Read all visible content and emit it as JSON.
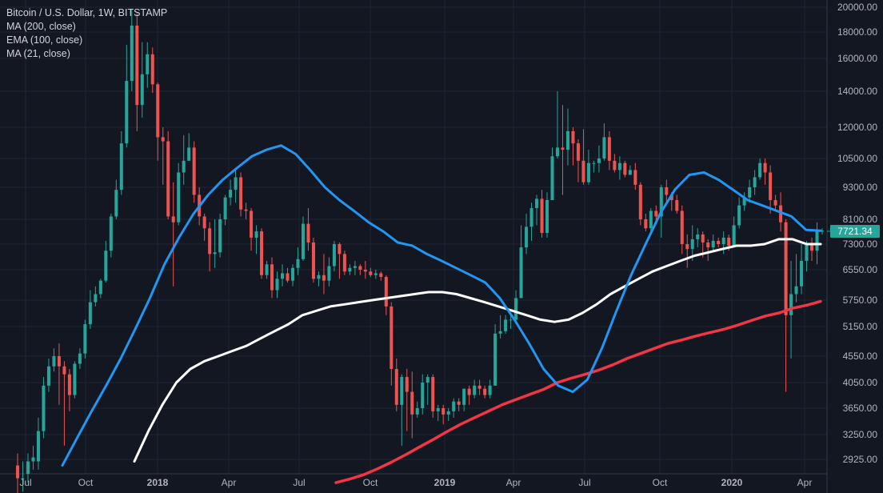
{
  "chart_data": {
    "type": "candlestick",
    "title": "Bitcoin / U.S. Dollar, 1W, BITSTAMP",
    "indicators": [
      {
        "name": "MA (200, close)",
        "color": "#f23645"
      },
      {
        "name": "EMA (100, close)",
        "color": "#ffffff"
      },
      {
        "name": "MA (21, close)",
        "color": "#2196f3"
      }
    ],
    "last_price": "7721.34",
    "y_scale": "log",
    "y_ticks": [
      "20000.00",
      "18000.00",
      "16000.00",
      "14000.00",
      "12000.00",
      "10500.00",
      "9300.00",
      "8100.00",
      "7300.00",
      "6550.00",
      "5750.00",
      "5150.00",
      "4550.00",
      "4050.00",
      "3650.00",
      "3250.00",
      "2925.00"
    ],
    "x_ticks": [
      "Jul",
      "Oct",
      "2018",
      "Apr",
      "Jul",
      "Oct",
      "2019",
      "Apr",
      "Jul",
      "Oct",
      "2020",
      "Apr"
    ],
    "bull_color": "#26a69a",
    "bear_color": "#ef5350",
    "grid": true,
    "candles": [
      [
        2850,
        2700,
        3000,
        2500
      ],
      [
        2700,
        2700,
        2900,
        2550
      ],
      [
        2750,
        2900,
        3000,
        2650
      ],
      [
        2900,
        2950,
        3100,
        2800
      ],
      [
        2900,
        3300,
        3500,
        2800
      ],
      [
        3300,
        4000,
        4150,
        3200
      ],
      [
        4000,
        4350,
        4500,
        3900
      ],
      [
        4350,
        4550,
        4700,
        4250
      ],
      [
        4550,
        4350,
        4800,
        3700
      ],
      [
        4350,
        4200,
        4450,
        3100
      ],
      [
        4200,
        3850,
        4300,
        3600
      ],
      [
        3850,
        4400,
        4450,
        3800
      ],
      [
        4400,
        4600,
        4700,
        4300
      ],
      [
        4600,
        5200,
        5300,
        4500
      ],
      [
        5200,
        5700,
        6000,
        5100
      ],
      [
        5700,
        5900,
        6100,
        5600
      ],
      [
        5900,
        6250,
        6300,
        5800
      ],
      [
        6250,
        7100,
        7400,
        6200
      ],
      [
        7100,
        8200,
        8300,
        6900
      ],
      [
        8200,
        9200,
        9600,
        8100
      ],
      [
        9200,
        11200,
        11800,
        9000
      ],
      [
        11200,
        14600,
        17000,
        11000
      ],
      [
        14600,
        18500,
        19800,
        14000
      ],
      [
        18500,
        13200,
        19500,
        11800
      ],
      [
        13200,
        15000,
        17200,
        12500
      ],
      [
        15000,
        16300,
        17200,
        14200
      ],
      [
        16300,
        14400,
        16800,
        13900
      ],
      [
        14400,
        11500,
        14500,
        10400
      ],
      [
        11500,
        11300,
        12000,
        9400
      ],
      [
        11300,
        8200,
        11800,
        8100
      ],
      [
        8200,
        8000,
        9500,
        6100
      ],
      [
        8000,
        9900,
        10300,
        7900
      ],
      [
        9900,
        10400,
        11600,
        9400
      ],
      [
        10400,
        11000,
        11700,
        10400
      ],
      [
        11000,
        9000,
        11300,
        8700
      ],
      [
        9000,
        8200,
        9300,
        7900
      ],
      [
        8200,
        7800,
        8300,
        7400
      ],
      [
        7800,
        7000,
        8000,
        6500
      ],
      [
        7000,
        7050,
        8100,
        6600
      ],
      [
        7050,
        8100,
        8300,
        6900
      ],
      [
        8100,
        8900,
        9000,
        7900
      ],
      [
        8900,
        9200,
        9600,
        8600
      ],
      [
        9200,
        9700,
        10000,
        8700
      ],
      [
        9700,
        8450,
        9900,
        8200
      ],
      [
        8450,
        8400,
        8700,
        8100
      ],
      [
        8400,
        7500,
        8500,
        7100
      ],
      [
        7500,
        7700,
        7900,
        7000
      ],
      [
        7700,
        6400,
        7800,
        6300
      ],
      [
        6400,
        6700,
        6800,
        6300
      ],
      [
        6700,
        6000,
        6900,
        5800
      ],
      [
        6000,
        6300,
        6500,
        5800
      ],
      [
        6300,
        6450,
        6700,
        6100
      ],
      [
        6450,
        6250,
        6600,
        6200
      ],
      [
        6250,
        6600,
        6700,
        6100
      ],
      [
        6600,
        6850,
        7200,
        6400
      ],
      [
        6850,
        7950,
        8200,
        6800
      ],
      [
        7950,
        7350,
        8500,
        7100
      ],
      [
        7350,
        6300,
        7500,
        6200
      ],
      [
        6300,
        6400,
        6500,
        6100
      ],
      [
        6400,
        6250,
        7000,
        5900
      ],
      [
        6250,
        6650,
        6900,
        6100
      ],
      [
        6650,
        7300,
        7400,
        6500
      ],
      [
        7300,
        7000,
        7350,
        6300
      ],
      [
        7000,
        6500,
        7100,
        6400
      ],
      [
        6500,
        6600,
        6700,
        6400
      ],
      [
        6600,
        6650,
        6800,
        6400
      ],
      [
        6650,
        6550,
        6700,
        6400
      ],
      [
        6550,
        6500,
        6800,
        6300
      ],
      [
        6500,
        6400,
        6600,
        6350
      ],
      [
        6400,
        6450,
        6550,
        6300
      ],
      [
        6450,
        6350,
        6500,
        6250
      ],
      [
        6350,
        5600,
        6400,
        5400
      ],
      [
        5600,
        4300,
        5700,
        4000
      ],
      [
        4300,
        3700,
        4500,
        3600
      ],
      [
        3700,
        4150,
        4200,
        3100
      ],
      [
        4150,
        3900,
        4300,
        3300
      ],
      [
        3900,
        3550,
        4250,
        3200
      ],
      [
        3550,
        3650,
        3750,
        3500
      ],
      [
        3650,
        4050,
        4200,
        3550
      ],
      [
        4050,
        4150,
        4200,
        3700
      ],
      [
        4150,
        3600,
        4200,
        3500
      ],
      [
        3600,
        3650,
        3700,
        3450
      ],
      [
        3650,
        3550,
        3700,
        3400
      ],
      [
        3550,
        3600,
        3650,
        3450
      ],
      [
        3600,
        3750,
        3800,
        3500
      ],
      [
        3750,
        3700,
        3800,
        3600
      ],
      [
        3700,
        3950,
        3950,
        3600
      ],
      [
        3950,
        3850,
        4000,
        3700
      ],
      [
        3850,
        4000,
        4100,
        3800
      ],
      [
        4000,
        3950,
        4100,
        3850
      ],
      [
        3950,
        3850,
        4000,
        3800
      ],
      [
        3850,
        4000,
        4100,
        3800
      ],
      [
        4000,
        5000,
        5200,
        4000
      ],
      [
        5000,
        5050,
        5400,
        4900
      ],
      [
        5050,
        5300,
        5400,
        5000
      ],
      [
        5300,
        5300,
        5400,
        5100
      ],
      [
        5300,
        5800,
        6000,
        5200
      ],
      [
        5800,
        7200,
        7900,
        5800
      ],
      [
        7200,
        7850,
        8300,
        7000
      ],
      [
        7850,
        8500,
        8700,
        7400
      ],
      [
        8500,
        8850,
        9000,
        7900
      ],
      [
        8850,
        7650,
        9200,
        7500
      ],
      [
        7650,
        8800,
        9100,
        7500
      ],
      [
        8800,
        10600,
        11000,
        8800
      ],
      [
        10600,
        11000,
        14000,
        10500
      ],
      [
        11000,
        10900,
        13200,
        9000
      ],
      [
        10900,
        11800,
        13000,
        10200
      ],
      [
        11800,
        11200,
        12000,
        10200
      ],
      [
        11200,
        10400,
        11400,
        9500
      ],
      [
        10400,
        9500,
        11900,
        9400
      ],
      [
        9500,
        10300,
        10900,
        9400
      ],
      [
        10300,
        10300,
        10400,
        9900
      ],
      [
        10300,
        10500,
        11100,
        9900
      ],
      [
        10500,
        11500,
        12200,
        10400
      ],
      [
        11500,
        10400,
        11800,
        10000
      ],
      [
        10400,
        10000,
        10700,
        9900
      ],
      [
        10000,
        10300,
        10600,
        9600
      ],
      [
        10300,
        9800,
        10400,
        9700
      ],
      [
        9800,
        10000,
        10200,
        9800
      ],
      [
        10000,
        9400,
        10300,
        9200
      ],
      [
        9400,
        8100,
        9500,
        7900
      ],
      [
        8100,
        7800,
        8300,
        7700
      ],
      [
        7800,
        8400,
        8500,
        7600
      ],
      [
        8400,
        8200,
        8600,
        8000
      ],
      [
        8200,
        9300,
        9400,
        7500
      ],
      [
        9300,
        9000,
        9600,
        8700
      ],
      [
        9000,
        8800,
        9100,
        8400
      ],
      [
        8800,
        8400,
        9000,
        8300
      ],
      [
        8400,
        7300,
        8600,
        7000
      ],
      [
        7300,
        7150,
        7600,
        6600
      ],
      [
        7150,
        7450,
        7900,
        6800
      ],
      [
        7450,
        7600,
        7800,
        7200
      ],
      [
        7600,
        7350,
        7700,
        6900
      ],
      [
        7350,
        7200,
        7450,
        6800
      ],
      [
        7200,
        7400,
        7600,
        7100
      ],
      [
        7400,
        7300,
        7500,
        7200
      ],
      [
        7300,
        7500,
        7700,
        7000
      ],
      [
        7500,
        7250,
        7600,
        7100
      ],
      [
        7250,
        7900,
        8200,
        7200
      ],
      [
        7900,
        8600,
        8900,
        7800
      ],
      [
        8600,
        8900,
        9100,
        8400
      ],
      [
        8900,
        9300,
        9600,
        8700
      ],
      [
        9300,
        9700,
        10000,
        9000
      ],
      [
        9700,
        10300,
        10500,
        9600
      ],
      [
        10300,
        9900,
        10500,
        9400
      ],
      [
        9900,
        8800,
        10200,
        8300
      ],
      [
        8800,
        8600,
        9000,
        8400
      ],
      [
        8600,
        8000,
        9100,
        7700
      ],
      [
        8000,
        5400,
        8100,
        3900
      ],
      [
        5400,
        5900,
        6800,
        4500
      ],
      [
        5900,
        6100,
        7000,
        5700
      ],
      [
        6100,
        6800,
        7300,
        5900
      ],
      [
        6800,
        7300,
        7400,
        6500
      ],
      [
        7300,
        7100,
        7500,
        6800
      ],
      [
        7100,
        7700,
        8000,
        6700
      ],
      [
        7700,
        7721,
        7800,
        7600
      ]
    ],
    "ma200": [
      2650,
      2690,
      2740,
      2810,
      2890,
      2980,
      3080,
      3180,
      3290,
      3400,
      3500,
      3600,
      3700,
      3780,
      3860,
      3940,
      4050,
      4130,
      4200,
      4280,
      4380,
      4500,
      4600,
      4700,
      4800,
      4870,
      4950,
      5020,
      5090,
      5180,
      5280,
      5380,
      5450,
      5560,
      5630,
      5720
    ],
    "ema100": [
      2900,
      3300,
      3700,
      4050,
      4300,
      4450,
      4550,
      4650,
      4750,
      4900,
      5050,
      5200,
      5400,
      5500,
      5600,
      5650,
      5700,
      5750,
      5800,
      5850,
      5900,
      5950,
      5950,
      5900,
      5800,
      5700,
      5600,
      5500,
      5400,
      5300,
      5250,
      5300,
      5450,
      5650,
      5900,
      6100,
      6300,
      6500,
      6650,
      6800,
      6950,
      7050,
      7150,
      7250,
      7250,
      7300,
      7450,
      7450,
      7300,
      7300
    ],
    "ma21": [
      2850,
      3200,
      3600,
      4000,
      4500,
      5100,
      5800,
      6700,
      7500,
      8300,
      9000,
      9600,
      10100,
      10600,
      10900,
      11100,
      10700,
      10000,
      9300,
      8800,
      8400,
      8000,
      7700,
      7350,
      7250,
      7000,
      6800,
      6600,
      6400,
      6200,
      5800,
      5300,
      4800,
      4300,
      4000,
      3900,
      4100,
      4700,
      5500,
      6400,
      7300,
      8300,
      9200,
      9800,
      9900,
      9600,
      9200,
      8800,
      8600,
      8400,
      8200,
      7750,
      7721
    ]
  }
}
